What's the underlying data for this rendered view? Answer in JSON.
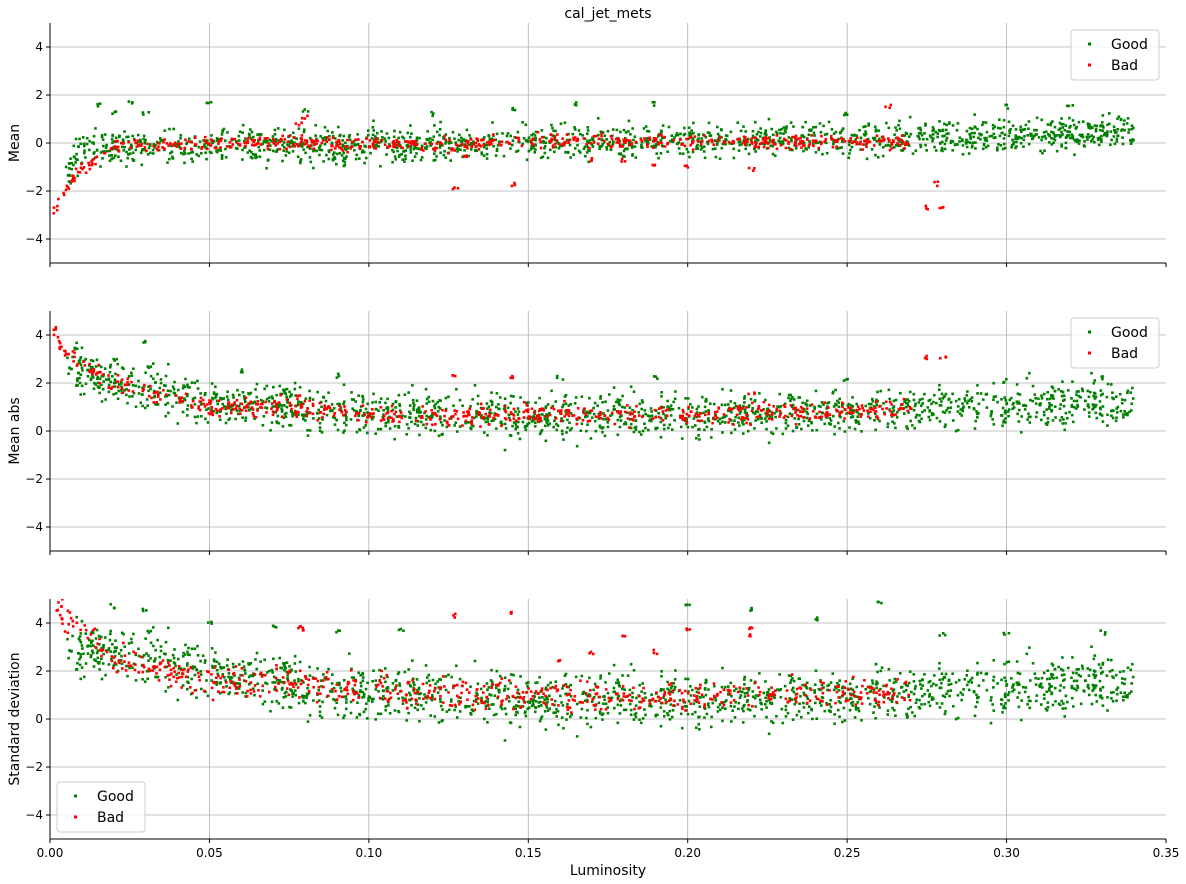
{
  "title": "cal_jet_mets",
  "colors": {
    "good": "#008000",
    "bad": "#ff0000",
    "grid": "#b0b0b0"
  },
  "chart_data": {
    "type": "scatter",
    "title": "cal_jet_mets",
    "xlabel": "Luminosity",
    "xlim": [
      0.0,
      0.35
    ],
    "x_ticks": [
      "0.00",
      "0.05",
      "0.10",
      "0.15",
      "0.20",
      "0.25",
      "0.30",
      "0.35"
    ],
    "y_ticks": [
      "4",
      "2",
      "0",
      "−2",
      "−4"
    ],
    "grid": true,
    "legend_labels": {
      "good": "Good",
      "bad": "Bad"
    },
    "panels": [
      {
        "ylabel": "Mean",
        "ylim": [
          -5,
          5
        ],
        "legend_placement": "top-right",
        "series": [
          {
            "name": "Good",
            "color": "#008000",
            "trend": [
              [
                0.005,
                -1.2
              ],
              [
                0.01,
                -0.3
              ],
              [
                0.02,
                -0.2
              ],
              [
                0.04,
                -0.15
              ],
              [
                0.06,
                -0.15
              ],
              [
                0.1,
                -0.1
              ],
              [
                0.15,
                0.0
              ],
              [
                0.2,
                0.1
              ],
              [
                0.25,
                0.2
              ],
              [
                0.3,
                0.35
              ],
              [
                0.34,
                0.45
              ]
            ],
            "spread": 0.35,
            "outliers": [
              [
                0.015,
                1.6
              ],
              [
                0.02,
                1.3
              ],
              [
                0.025,
                1.7
              ],
              [
                0.03,
                1.2
              ],
              [
                0.05,
                1.7
              ],
              [
                0.08,
                1.3
              ],
              [
                0.12,
                1.2
              ],
              [
                0.145,
                1.4
              ],
              [
                0.165,
                1.6
              ],
              [
                0.19,
                1.6
              ],
              [
                0.25,
                1.2
              ],
              [
                0.3,
                1.5
              ],
              [
                0.32,
                1.5
              ]
            ]
          },
          {
            "name": "Bad",
            "color": "#ff0000",
            "trend": [
              [
                0.001,
                -2.8
              ],
              [
                0.003,
                -2.5
              ],
              [
                0.007,
                -1.5
              ],
              [
                0.02,
                -0.1
              ],
              [
                0.05,
                0.0
              ],
              [
                0.08,
                0.0
              ],
              [
                0.12,
                -0.05
              ],
              [
                0.15,
                0.1
              ],
              [
                0.2,
                0.05
              ],
              [
                0.25,
                0.05
              ],
              [
                0.27,
                0.05
              ]
            ],
            "spread": 0.15,
            "outliers": [
              [
                0.078,
                0.8
              ],
              [
                0.08,
                1.1
              ],
              [
                0.127,
                -1.9
              ],
              [
                0.13,
                -0.6
              ],
              [
                0.145,
                -1.7
              ],
              [
                0.17,
                -0.7
              ],
              [
                0.18,
                -0.7
              ],
              [
                0.19,
                -0.9
              ],
              [
                0.2,
                -1.0
              ],
              [
                0.22,
                -1.1
              ],
              [
                0.263,
                1.5
              ],
              [
                0.275,
                -2.7
              ],
              [
                0.278,
                -1.7
              ],
              [
                0.28,
                -2.7
              ]
            ]
          }
        ]
      },
      {
        "ylabel": "Mean abs",
        "ylim": [
          -5,
          5
        ],
        "legend_placement": "top-right",
        "series": [
          {
            "name": "Good",
            "color": "#008000",
            "trend": [
              [
                0.005,
                2.8
              ],
              [
                0.02,
                2.0
              ],
              [
                0.05,
                1.2
              ],
              [
                0.1,
                0.8
              ],
              [
                0.15,
                0.6
              ],
              [
                0.2,
                0.65
              ],
              [
                0.25,
                0.85
              ],
              [
                0.3,
                1.05
              ],
              [
                0.34,
                1.15
              ]
            ],
            "spread": 0.45,
            "outliers": [
              [
                0.008,
                3.5
              ],
              [
                0.02,
                3.0
              ],
              [
                0.03,
                3.7
              ],
              [
                0.06,
                2.5
              ],
              [
                0.09,
                2.3
              ],
              [
                0.16,
                2.2
              ],
              [
                0.19,
                2.2
              ],
              [
                0.25,
                2.1
              ],
              [
                0.3,
                2.1
              ],
              [
                0.33,
                2.2
              ]
            ]
          },
          {
            "name": "Bad",
            "color": "#ff0000",
            "trend": [
              [
                0.001,
                4.3
              ],
              [
                0.005,
                3.2
              ],
              [
                0.02,
                2.0
              ],
              [
                0.05,
                1.0
              ],
              [
                0.08,
                0.9
              ],
              [
                0.12,
                0.6
              ],
              [
                0.15,
                0.7
              ],
              [
                0.2,
                0.7
              ],
              [
                0.25,
                0.85
              ],
              [
                0.27,
                0.95
              ]
            ],
            "spread": 0.2,
            "outliers": [
              [
                0.078,
                1.4
              ],
              [
                0.127,
                2.3
              ],
              [
                0.145,
                2.2
              ],
              [
                0.22,
                1.5
              ],
              [
                0.275,
                3.1
              ],
              [
                0.28,
                3.1
              ]
            ]
          }
        ]
      },
      {
        "ylabel": "Standard deviation",
        "ylim": [
          -5,
          5
        ],
        "legend_placement": "bottom-left",
        "series": [
          {
            "name": "Good",
            "color": "#008000",
            "trend": [
              [
                0.005,
                3.0
              ],
              [
                0.02,
                2.8
              ],
              [
                0.04,
                2.2
              ],
              [
                0.06,
                1.8
              ],
              [
                0.08,
                1.3
              ],
              [
                0.1,
                1.1
              ],
              [
                0.15,
                0.8
              ],
              [
                0.2,
                0.8
              ],
              [
                0.25,
                1.0
              ],
              [
                0.3,
                1.3
              ],
              [
                0.34,
                1.5
              ]
            ],
            "spread": 0.55,
            "outliers": [
              [
                0.02,
                4.7
              ],
              [
                0.03,
                4.5
              ],
              [
                0.05,
                4.0
              ],
              [
                0.07,
                3.8
              ],
              [
                0.09,
                3.7
              ],
              [
                0.11,
                3.7
              ],
              [
                0.2,
                4.8
              ],
              [
                0.22,
                4.6
              ],
              [
                0.24,
                4.2
              ],
              [
                0.26,
                4.8
              ],
              [
                0.28,
                3.5
              ],
              [
                0.3,
                3.6
              ],
              [
                0.33,
                3.6
              ],
              [
                0.26,
                2.2
              ],
              [
                0.3,
                2.3
              ],
              [
                0.33,
                2.3
              ]
            ]
          },
          {
            "name": "Bad",
            "color": "#ff0000",
            "trend": [
              [
                0.001,
                4.8
              ],
              [
                0.005,
                4.3
              ],
              [
                0.02,
                2.5
              ],
              [
                0.05,
                1.6
              ],
              [
                0.08,
                1.5
              ],
              [
                0.1,
                1.2
              ],
              [
                0.15,
                0.9
              ],
              [
                0.2,
                0.9
              ],
              [
                0.25,
                1.1
              ],
              [
                0.27,
                1.2
              ]
            ],
            "spread": 0.3,
            "outliers": [
              [
                0.078,
                3.8
              ],
              [
                0.08,
                3.7
              ],
              [
                0.127,
                4.3
              ],
              [
                0.145,
                4.4
              ],
              [
                0.16,
                2.5
              ],
              [
                0.17,
                2.7
              ],
              [
                0.18,
                3.5
              ],
              [
                0.19,
                2.8
              ],
              [
                0.2,
                3.7
              ],
              [
                0.22,
                3.8
              ],
              [
                0.22,
                3.5
              ]
            ]
          }
        ]
      }
    ]
  }
}
